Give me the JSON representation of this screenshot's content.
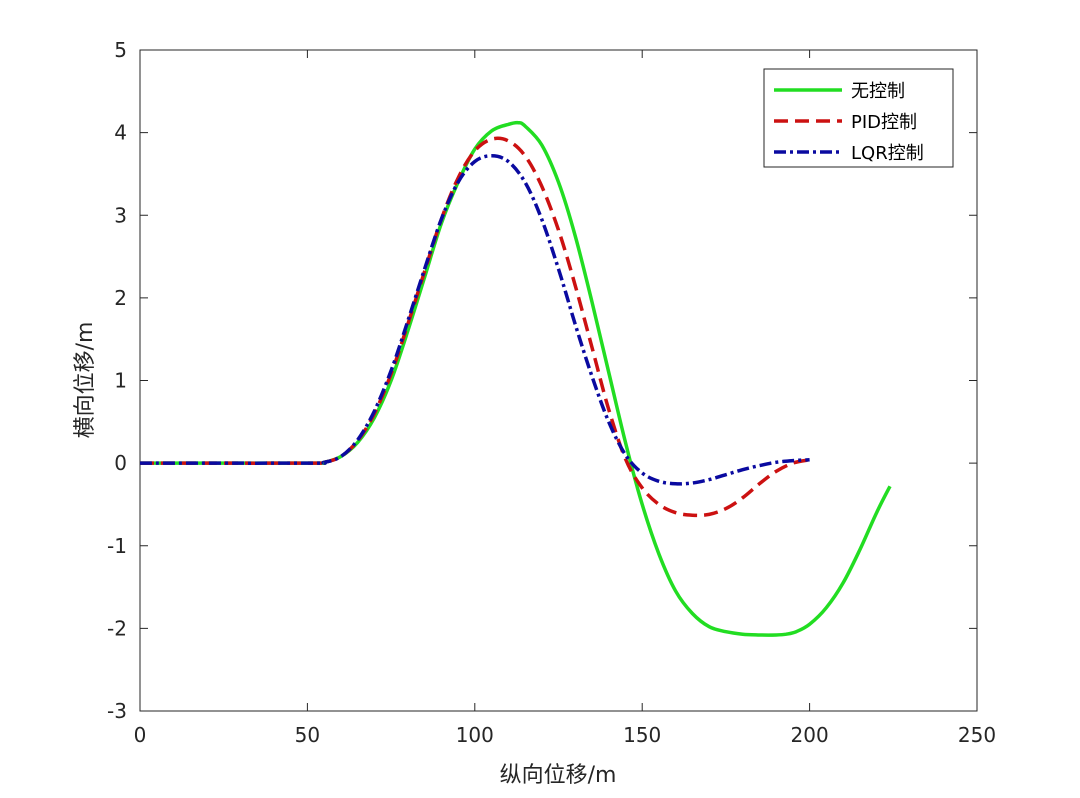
{
  "chart_data": {
    "type": "line",
    "title": "",
    "xlabel": "纵向位移/m",
    "ylabel": "横向位移/m",
    "xlim": [
      0,
      250
    ],
    "ylim": [
      -3,
      5
    ],
    "xticks": [
      0,
      50,
      100,
      150,
      200,
      250
    ],
    "xtick_labels": [
      "0",
      "50",
      "100",
      "150",
      "200",
      "250"
    ],
    "yticks": [
      -3,
      -2,
      -1,
      0,
      1,
      2,
      3,
      4,
      5
    ],
    "ytick_labels": [
      "-3",
      "-2",
      "-1",
      "0",
      "1",
      "2",
      "3",
      "4",
      "5"
    ],
    "grid": false,
    "legend_position": "top-right",
    "series": [
      {
        "name": "无控制",
        "color": "#22dd22",
        "dash": "solid",
        "x": [
          0,
          50,
          55,
          60,
          65,
          70,
          75,
          80,
          85,
          90,
          95,
          100,
          105,
          110,
          113,
          115,
          120,
          125,
          130,
          135,
          140,
          145,
          150,
          155,
          160,
          165,
          170,
          175,
          180,
          185,
          190,
          193,
          196,
          200,
          205,
          210,
          215,
          220,
          224
        ],
        "y": [
          0,
          0,
          0.01,
          0.08,
          0.25,
          0.55,
          1.0,
          1.6,
          2.25,
          2.9,
          3.4,
          3.8,
          4.02,
          4.1,
          4.12,
          4.08,
          3.85,
          3.4,
          2.75,
          1.95,
          1.1,
          0.25,
          -0.5,
          -1.1,
          -1.55,
          -1.82,
          -1.98,
          -2.04,
          -2.07,
          -2.08,
          -2.08,
          -2.07,
          -2.04,
          -1.95,
          -1.75,
          -1.45,
          -1.05,
          -0.6,
          -0.28
        ]
      },
      {
        "name": "PID控制",
        "color": "#cc1111",
        "dash": "dashed",
        "x": [
          0,
          50,
          55,
          60,
          65,
          70,
          75,
          80,
          85,
          90,
          95,
          100,
          105,
          110,
          115,
          120,
          125,
          130,
          135,
          140,
          145,
          150,
          155,
          160,
          165,
          170,
          175,
          180,
          185,
          190,
          195,
          200
        ],
        "y": [
          0,
          0,
          0.01,
          0.08,
          0.27,
          0.6,
          1.08,
          1.68,
          2.32,
          2.95,
          3.45,
          3.78,
          3.92,
          3.9,
          3.72,
          3.35,
          2.82,
          2.15,
          1.4,
          0.65,
          0.05,
          -0.3,
          -0.5,
          -0.6,
          -0.63,
          -0.62,
          -0.55,
          -0.42,
          -0.25,
          -0.1,
          0.0,
          0.04
        ]
      },
      {
        "name": "LQR控制",
        "color": "#0a0aa0",
        "dash": "dashdot",
        "x": [
          0,
          50,
          55,
          60,
          65,
          70,
          75,
          80,
          85,
          90,
          95,
          100,
          105,
          110,
          115,
          120,
          125,
          130,
          135,
          140,
          145,
          150,
          155,
          160,
          165,
          170,
          175,
          180,
          185,
          190,
          195,
          200
        ],
        "y": [
          0,
          0,
          0.01,
          0.08,
          0.28,
          0.63,
          1.12,
          1.72,
          2.35,
          2.95,
          3.4,
          3.65,
          3.72,
          3.65,
          3.4,
          2.95,
          2.35,
          1.68,
          1.05,
          0.5,
          0.1,
          -0.12,
          -0.22,
          -0.25,
          -0.24,
          -0.2,
          -0.14,
          -0.08,
          -0.03,
          0.01,
          0.03,
          0.04
        ]
      }
    ]
  }
}
